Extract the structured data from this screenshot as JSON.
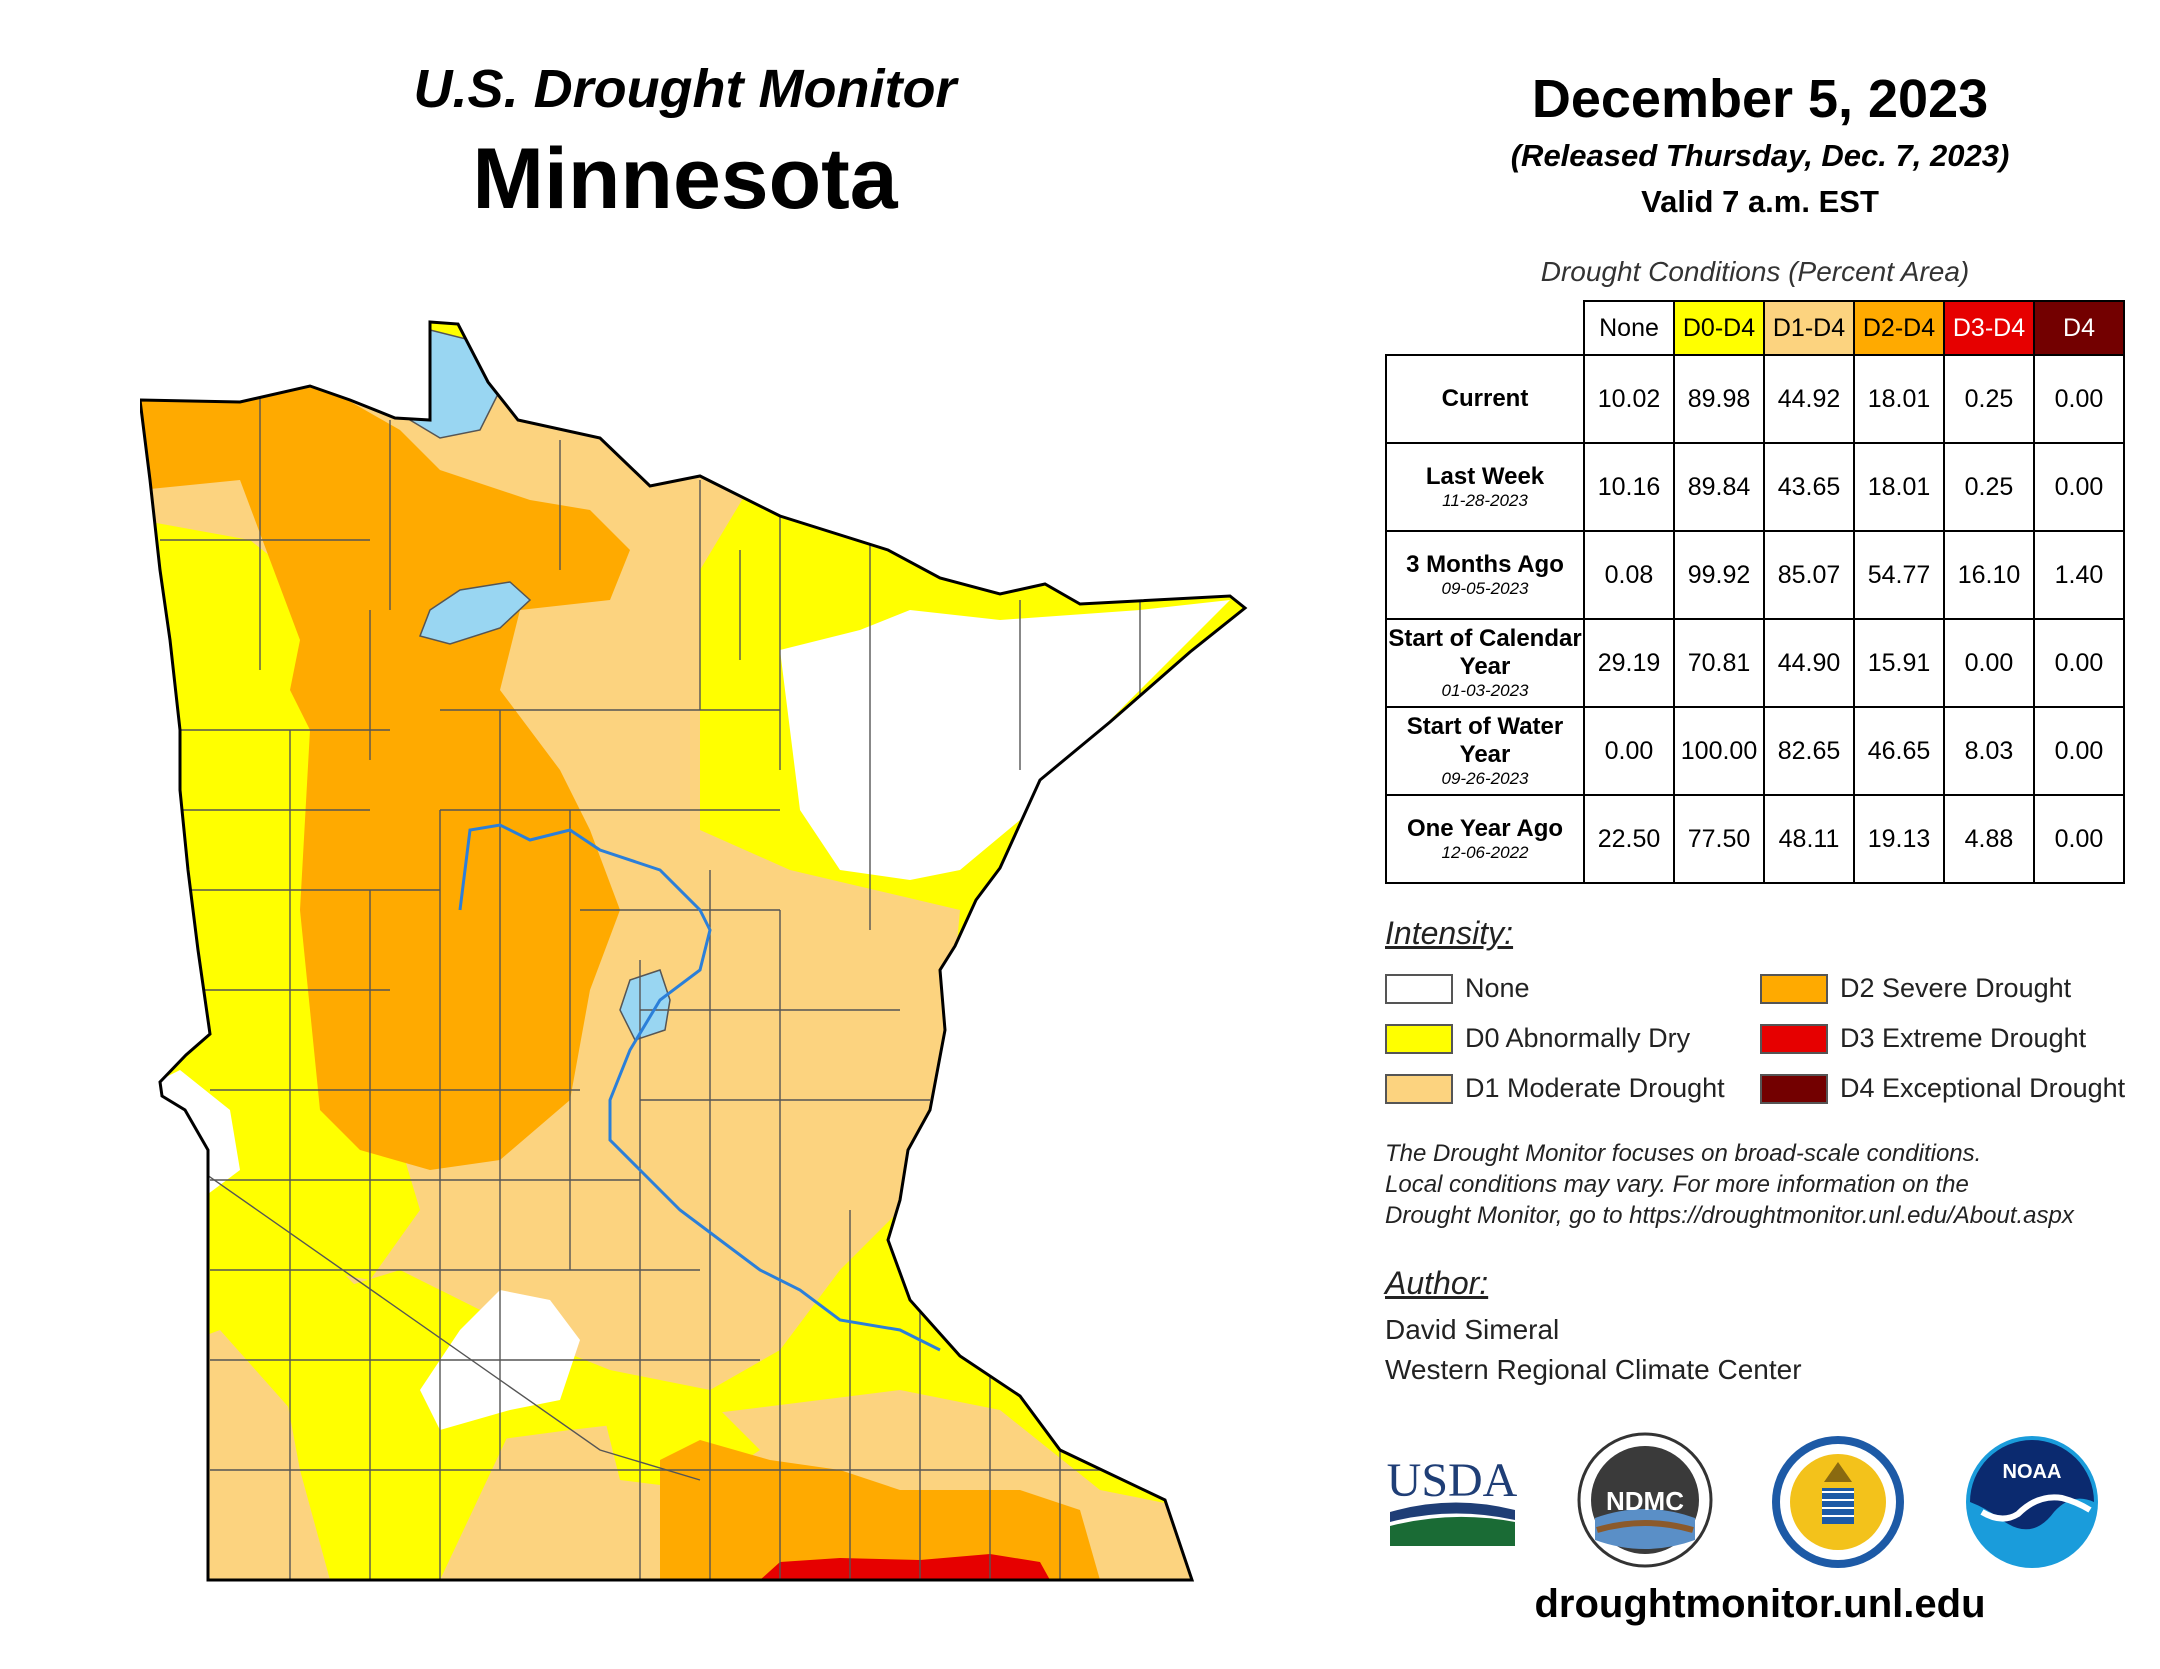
{
  "header": {
    "app_title": "U.S. Drought Monitor",
    "state": "Minnesota",
    "date": "December 5, 2023",
    "released": "(Released Thursday, Dec. 7, 2023)",
    "valid": "Valid 7 a.m. EST"
  },
  "table": {
    "caption": "Drought Conditions (Percent Area)",
    "columns": [
      "None",
      "D0-D4",
      "D1-D4",
      "D2-D4",
      "D3-D4",
      "D4"
    ],
    "rows": [
      {
        "label": "Current",
        "date": "",
        "values": [
          "10.02",
          "89.98",
          "44.92",
          "18.01",
          "0.25",
          "0.00"
        ]
      },
      {
        "label": "Last Week",
        "date": "11-28-2023",
        "values": [
          "10.16",
          "89.84",
          "43.65",
          "18.01",
          "0.25",
          "0.00"
        ]
      },
      {
        "label": "3 Months Ago",
        "date": "09-05-2023",
        "values": [
          "0.08",
          "99.92",
          "85.07",
          "54.77",
          "16.10",
          "1.40"
        ]
      },
      {
        "label": "Start of Calendar Year",
        "date": "01-03-2023",
        "values": [
          "29.19",
          "70.81",
          "44.90",
          "15.91",
          "0.00",
          "0.00"
        ]
      },
      {
        "label": "Start of Water Year",
        "date": "09-26-2023",
        "values": [
          "0.00",
          "100.00",
          "82.65",
          "46.65",
          "8.03",
          "0.00"
        ]
      },
      {
        "label": "One Year Ago",
        "date": "12-06-2022",
        "values": [
          "22.50",
          "77.50",
          "48.11",
          "19.13",
          "4.88",
          "0.00"
        ]
      }
    ]
  },
  "legend": {
    "title": "Intensity:",
    "items": [
      {
        "label": "None",
        "color": "#ffffff"
      },
      {
        "label": "D0 Abnormally Dry",
        "color": "#ffff00"
      },
      {
        "label": "D1 Moderate Drought",
        "color": "#fcd37f"
      },
      {
        "label": "D2 Severe Drought",
        "color": "#ffaa00"
      },
      {
        "label": "D3 Extreme Drought",
        "color": "#e60000"
      },
      {
        "label": "D4 Exceptional Drought",
        "color": "#730000"
      }
    ]
  },
  "note": {
    "line1": "The Drought Monitor focuses on broad-scale conditions.",
    "line2": "Local conditions may vary. For more information on the",
    "line3": "Drought Monitor, go to https://droughtmonitor.unl.edu/About.aspx"
  },
  "author": {
    "title": "Author:",
    "name": "David Simeral",
    "org": "Western Regional Climate Center"
  },
  "logos": {
    "usda": "USDA",
    "ndmc": "NDMC",
    "noaa": "NOAA"
  },
  "url": "droughtmonitor.unl.edu",
  "colors": {
    "water": "#99d6f2",
    "river": "#2b7fd9",
    "county_line": "#555555"
  }
}
